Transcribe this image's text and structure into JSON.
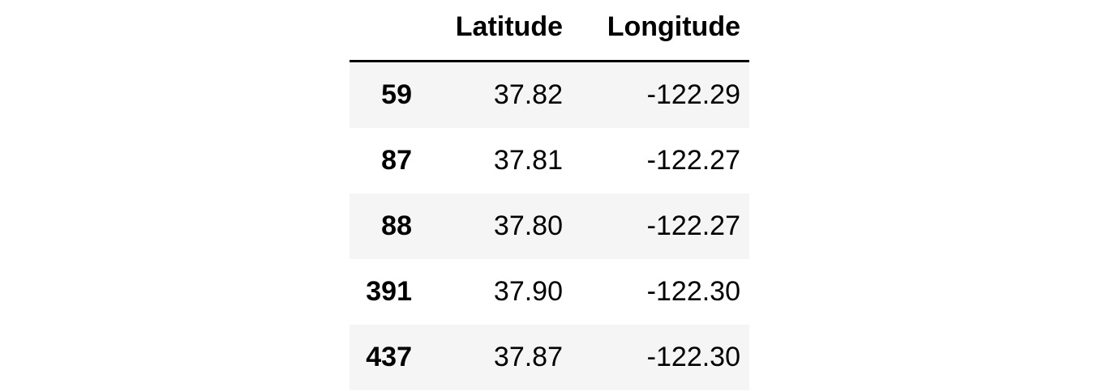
{
  "table": {
    "columns": [
      "Latitude",
      "Longitude"
    ],
    "rows": [
      {
        "index": "59",
        "latitude": "37.82",
        "longitude": "-122.29"
      },
      {
        "index": "87",
        "latitude": "37.81",
        "longitude": "-122.27"
      },
      {
        "index": "88",
        "latitude": "37.80",
        "longitude": "-122.27"
      },
      {
        "index": "391",
        "latitude": "37.90",
        "longitude": "-122.30"
      },
      {
        "index": "437",
        "latitude": "37.87",
        "longitude": "-122.30"
      }
    ]
  },
  "colors": {
    "text": "#000000",
    "stripe": "#f5f5f5",
    "background": "#ffffff",
    "header_rule": "#000000"
  }
}
